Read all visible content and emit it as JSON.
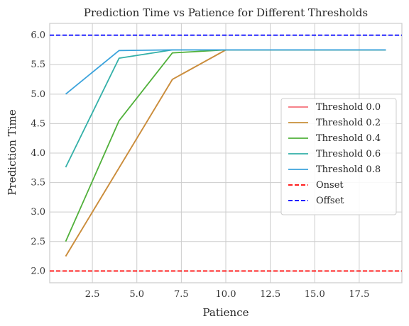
{
  "chart_data": {
    "type": "line",
    "title": "Prediction Time vs Patience for Different Thresholds",
    "xlabel": "Patience",
    "ylabel": "Prediction Time",
    "xlim": [
      0.1,
      19.9
    ],
    "ylim": [
      1.8,
      6.2
    ],
    "xticks": [
      2.5,
      5.0,
      7.5,
      10.0,
      12.5,
      15.0,
      17.5
    ],
    "xtick_labels": [
      "2.5",
      "5.0",
      "7.5",
      "10.0",
      "12.5",
      "15.0",
      "17.5"
    ],
    "yticks": [
      2.0,
      2.5,
      3.0,
      3.5,
      4.0,
      4.5,
      5.0,
      5.5,
      6.0
    ],
    "ytick_labels": [
      "2.0",
      "2.5",
      "3.0",
      "3.5",
      "4.0",
      "4.5",
      "5.0",
      "5.5",
      "6.0"
    ],
    "grid": true,
    "legend_position": "center-right",
    "x": [
      1,
      4,
      7,
      10,
      13,
      16,
      19
    ],
    "series": [
      {
        "name": "Threshold 0.0",
        "color": "#f5707a",
        "values": [
          2.25,
          3.75,
          5.25,
          5.75,
          5.75,
          5.75,
          5.75
        ]
      },
      {
        "name": "Threshold 0.2",
        "color": "#c8913a",
        "values": [
          2.25,
          3.75,
          5.25,
          5.75,
          5.75,
          5.75,
          5.75
        ]
      },
      {
        "name": "Threshold 0.4",
        "color": "#50b03a",
        "values": [
          2.5,
          4.55,
          5.7,
          5.75,
          5.75,
          5.75,
          5.75
        ]
      },
      {
        "name": "Threshold 0.6",
        "color": "#33b0a8",
        "values": [
          3.76,
          5.61,
          5.75,
          5.75,
          5.75,
          5.75,
          5.75
        ]
      },
      {
        "name": "Threshold 0.8",
        "color": "#3ba3dc",
        "values": [
          5.0,
          5.74,
          5.75,
          5.75,
          5.75,
          5.75,
          5.75
        ]
      }
    ],
    "hlines": [
      {
        "name": "Onset",
        "color": "#ff0000",
        "y": 2.0
      },
      {
        "name": "Offset",
        "color": "#0000ff",
        "y": 6.0
      }
    ]
  }
}
